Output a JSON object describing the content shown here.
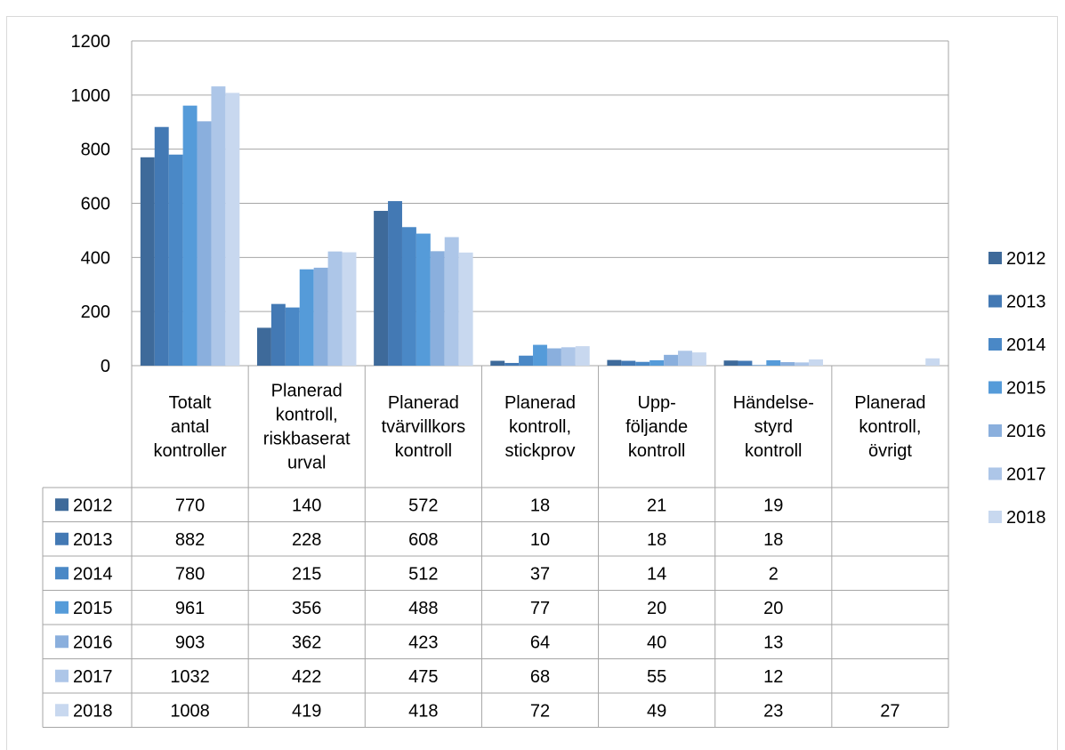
{
  "chart_data": {
    "type": "bar",
    "title": "",
    "xlabel": "",
    "ylabel": "",
    "ylim": [
      0,
      1200
    ],
    "yticks": [
      0,
      200,
      400,
      600,
      800,
      1000,
      1200
    ],
    "grid": true,
    "legend": "right",
    "categories": [
      [
        "Totalt",
        "antal",
        "kontroller"
      ],
      [
        "Planerad",
        "kontroll,",
        "riskbaserat",
        "urval"
      ],
      [
        "Planerad",
        "tvärvillkors",
        "kontroll"
      ],
      [
        "Planerad",
        "kontroll,",
        "stickprov"
      ],
      [
        "Upp-",
        "följande",
        "kontroll"
      ],
      [
        "Händelse-",
        "styrd",
        "kontroll"
      ],
      [
        "Planerad",
        "kontroll,",
        "övrigt"
      ]
    ],
    "series": [
      {
        "name": "2012",
        "color": "#3e6a9a",
        "values": [
          770,
          140,
          572,
          18,
          21,
          19,
          null
        ]
      },
      {
        "name": "2013",
        "color": "#4379b4",
        "values": [
          882,
          228,
          608,
          10,
          18,
          18,
          null
        ]
      },
      {
        "name": "2014",
        "color": "#4a88c6",
        "values": [
          780,
          215,
          512,
          37,
          14,
          2,
          null
        ]
      },
      {
        "name": "2015",
        "color": "#559bd9",
        "values": [
          961,
          356,
          488,
          77,
          20,
          20,
          null
        ]
      },
      {
        "name": "2016",
        "color": "#8aafdd",
        "values": [
          903,
          362,
          423,
          64,
          40,
          13,
          null
        ]
      },
      {
        "name": "2017",
        "color": "#adc6e8",
        "values": [
          1032,
          422,
          475,
          68,
          55,
          12,
          null
        ]
      },
      {
        "name": "2018",
        "color": "#c8d8ef",
        "values": [
          1008,
          419,
          418,
          72,
          49,
          23,
          27
        ]
      }
    ]
  }
}
